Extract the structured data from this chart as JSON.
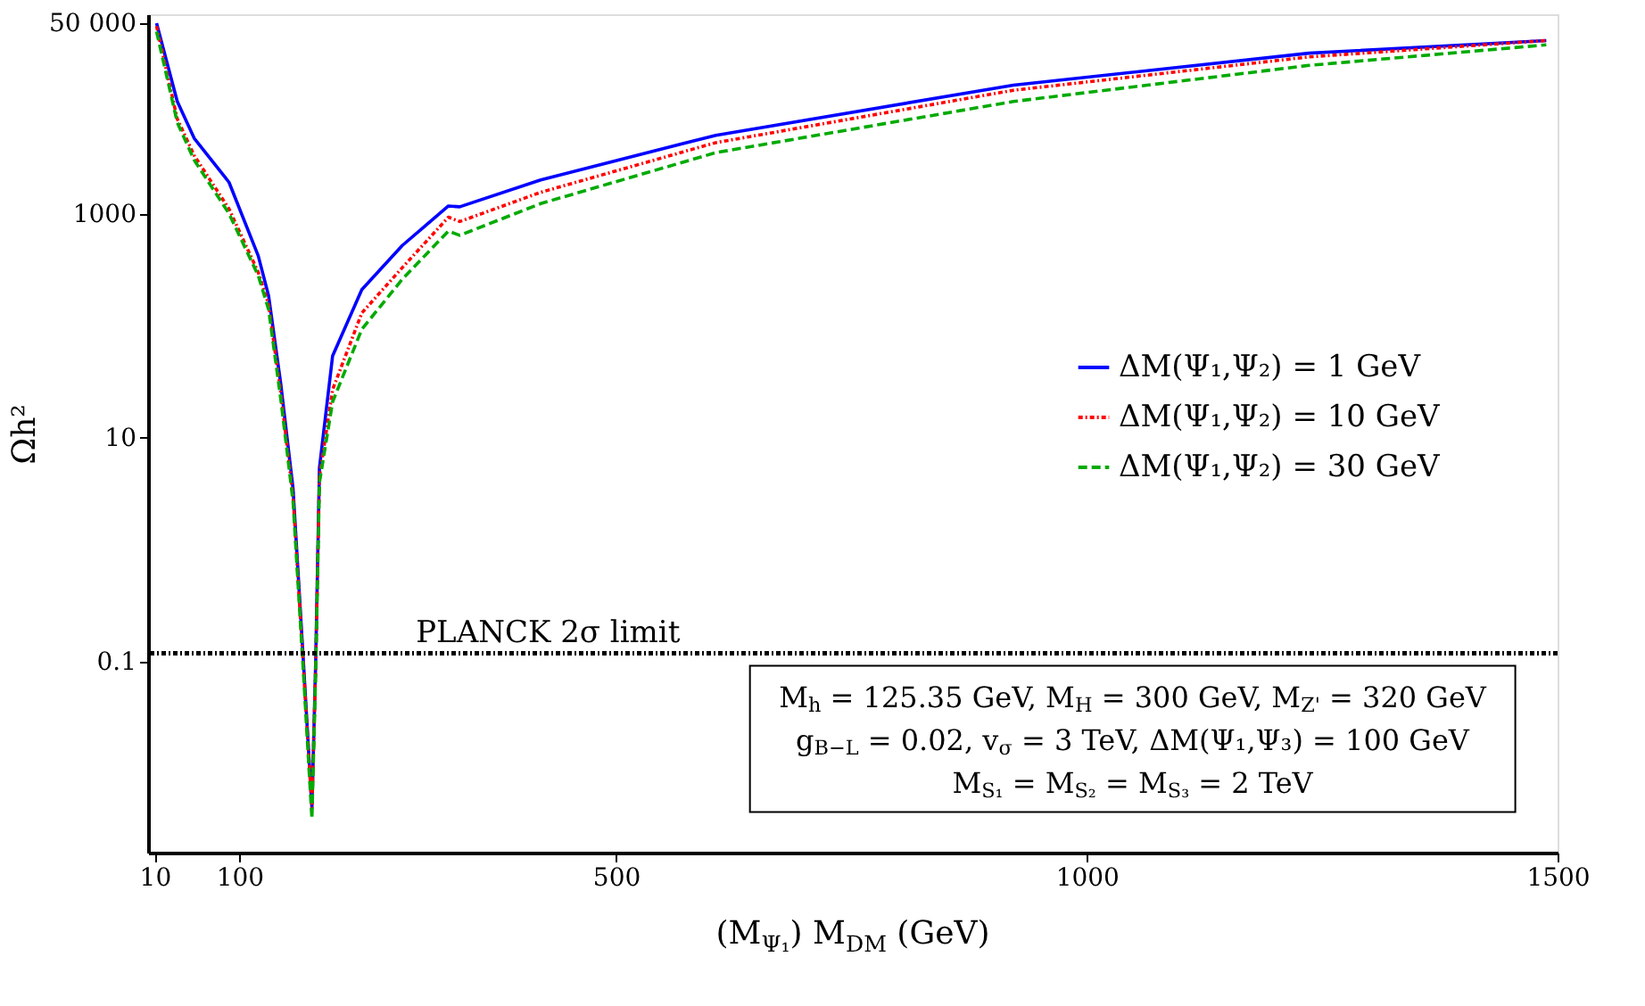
{
  "chart_data": {
    "type": "line",
    "xlabel": "(M$_{Ψ₁}$) M$_{DM}$ (GeV)",
    "ylabel": "Ωh²",
    "xlim": [
      3,
      1500
    ],
    "xticks": [
      10,
      100,
      500,
      1000,
      1500
    ],
    "ylim": [
      0.002,
      60000
    ],
    "yticks": [
      0.1,
      10,
      1000,
      {
        "value": 50000,
        "label": "50 000"
      }
    ],
    "log": "y",
    "grid": false,
    "legend": "right",
    "series": [
      {
        "name": "ΔM(Ψ₁,Ψ₂) = 1 GeV",
        "color": "#0000ff",
        "line_style": "solid",
        "x": [
          12,
          34,
          52,
          89,
          120,
          131,
          144,
          157,
          168,
          177,
          181,
          185,
          199,
          230,
          273,
          322,
          334,
          420,
          606,
          922,
          1236,
          1488
        ],
        "values": [
          50000,
          10000,
          4700,
          1900,
          420,
          185,
          30,
          3.5,
          0.1,
          0.005,
          0.1,
          5.4,
          54,
          210,
          520,
          1170,
          1150,
          2000,
          5000,
          14000,
          27000,
          35000
        ]
      },
      {
        "name": "ΔM(Ψ₁,Ψ₂) = 10 GeV",
        "color": "#ff0000",
        "line_style": "dotted",
        "x": [
          12,
          34,
          52,
          89,
          120,
          131,
          144,
          157,
          168,
          177,
          181,
          185,
          199,
          230,
          273,
          322,
          334,
          420,
          606,
          922,
          1236,
          1488
        ],
        "values": [
          47000,
          7000,
          3300,
          1100,
          300,
          155,
          25,
          3,
          0.09,
          0.005,
          0.09,
          4.5,
          27,
          130,
          330,
          930,
          850,
          1550,
          4300,
          12600,
          25000,
          35000
        ]
      },
      {
        "name": "ΔM(Ψ₁,Ψ₂) = 30 GeV",
        "color": "#00aa00",
        "line_style": "dashed",
        "x": [
          12,
          34,
          52,
          89,
          120,
          131,
          144,
          157,
          168,
          177,
          181,
          185,
          199,
          230,
          273,
          322,
          334,
          420,
          606,
          922,
          1236,
          1488
        ],
        "values": [
          42000,
          6500,
          3000,
          1000,
          280,
          140,
          22,
          2.7,
          0.08,
          0.004,
          0.08,
          4,
          21,
          93,
          260,
          700,
          640,
          1230,
          3500,
          10000,
          21000,
          32000
        ]
      }
    ],
    "ref_lines": [
      {
        "axis": "y",
        "value": 0.12,
        "label": "PLANCK 2σ limit",
        "color": "#000000",
        "line_style": "dotted"
      }
    ],
    "annotations": [
      "M$_{h}$ = 125.35 GeV, M$_{H}$ = 300 GeV, M$_{Z'}$ = 320 GeV",
      "g$_{B−L}$ = 0.02, v$_{σ}$ = 3 TeV, ΔM(Ψ₁,Ψ₃) = 100 GeV",
      "M$_{S₁}$ = M$_{S₂}$ = M$_{S₃}$ = 2 TeV"
    ]
  }
}
